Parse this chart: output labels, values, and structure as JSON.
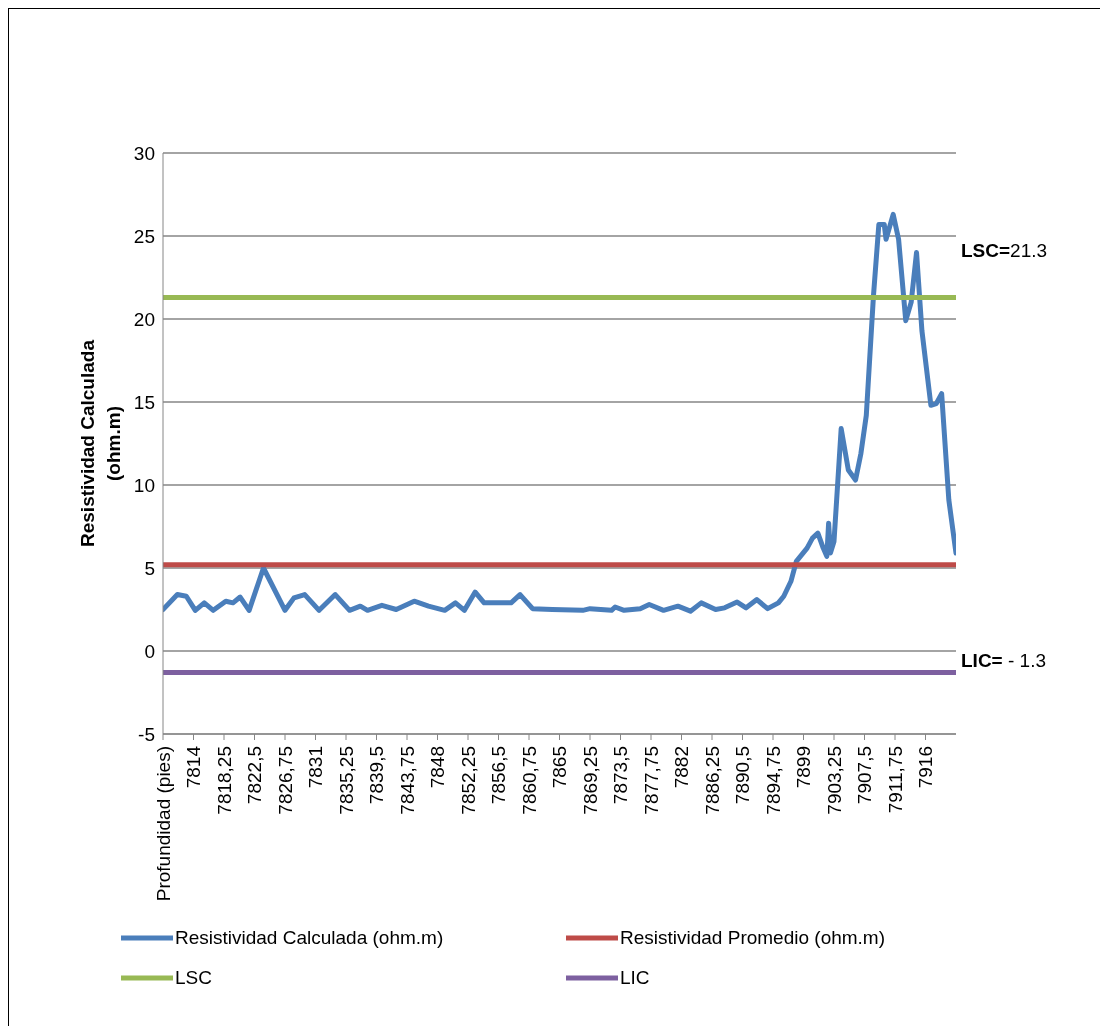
{
  "chart_data": {
    "type": "line",
    "ylabel": "Resistividad Calculada (ohm.m)",
    "xlim": [
      7809.75,
      7920.25
    ],
    "ylim": [
      -5,
      30
    ],
    "yticks": [
      -5,
      0,
      5,
      10,
      15,
      20,
      25,
      30
    ],
    "xticks": [
      {
        "value": 7809.75,
        "label": "Profundidad (pies)"
      },
      {
        "value": 7814,
        "label": "7814"
      },
      {
        "value": 7818.25,
        "label": "7818,25"
      },
      {
        "value": 7822.5,
        "label": "7822,5"
      },
      {
        "value": 7826.75,
        "label": "7826,75"
      },
      {
        "value": 7831,
        "label": "7831"
      },
      {
        "value": 7835.25,
        "label": "7835,25"
      },
      {
        "value": 7839.5,
        "label": "7839,5"
      },
      {
        "value": 7843.75,
        "label": "7843,75"
      },
      {
        "value": 7848,
        "label": "7848"
      },
      {
        "value": 7852.25,
        "label": "7852,25"
      },
      {
        "value": 7856.5,
        "label": "7856,5"
      },
      {
        "value": 7860.75,
        "label": "7860,75"
      },
      {
        "value": 7865,
        "label": "7865"
      },
      {
        "value": 7869.25,
        "label": "7869,25"
      },
      {
        "value": 7873.5,
        "label": "7873,5"
      },
      {
        "value": 7877.75,
        "label": "7877,75"
      },
      {
        "value": 7882,
        "label": "7882"
      },
      {
        "value": 7886.25,
        "label": "7886,25"
      },
      {
        "value": 7890.5,
        "label": "7890,5"
      },
      {
        "value": 7894.75,
        "label": "7894,75"
      },
      {
        "value": 7899,
        "label": "7899"
      },
      {
        "value": 7903.25,
        "label": "7903,25"
      },
      {
        "value": 7907.5,
        "label": "7907,5"
      },
      {
        "value": 7911.75,
        "label": "7911,75"
      },
      {
        "value": 7916,
        "label": "7916"
      }
    ],
    "grid": "y",
    "legend": "bottom",
    "marker": "none",
    "line_style": "solid",
    "series": [
      {
        "name": "Resistividad Calculada (ohm.m)",
        "color": "#4a7ebb",
        "x": [
          7809.75,
          7811.75,
          7813,
          7814.25,
          7815.5,
          7816.75,
          7818.5,
          7819.5,
          7820.5,
          7821.75,
          7823.75,
          7826.75,
          7828,
          7829.5,
          7831.5,
          7833.75,
          7835.75,
          7837.25,
          7838.25,
          7840.25,
          7842.25,
          7844.75,
          7846.75,
          7849,
          7850.5,
          7851.75,
          7853.25,
          7854.5,
          7856,
          7858.25,
          7859.5,
          7861.25,
          7864,
          7868.25,
          7869.25,
          7872.25,
          7872.75,
          7874,
          7876.25,
          7877.5,
          7879.5,
          7881.5,
          7883.25,
          7884.75,
          7886.75,
          7888,
          7889.75,
          7891,
          7892.5,
          7894,
          7895.5,
          7896.25,
          7897.25,
          7898,
          7899.5,
          7900.25,
          7901,
          7901.75,
          7902.25,
          7902.5,
          7902.75,
          7903.25,
          7904.25,
          7905.25,
          7906.25,
          7907,
          7907.75,
          7908.75,
          7909.5,
          7910.25,
          7910.5,
          7911.5,
          7912.25,
          7913.25,
          7914,
          7914.75,
          7915.5,
          7916.75,
          7917.5,
          7918.25,
          7919.25,
          7920.25
        ],
        "values": [
          2.5,
          3.4,
          3.3,
          2.45,
          2.9,
          2.45,
          3.0,
          2.9,
          3.25,
          2.45,
          5.0,
          2.45,
          3.2,
          3.4,
          2.45,
          3.4,
          2.45,
          2.7,
          2.45,
          2.75,
          2.5,
          3.0,
          2.7,
          2.45,
          2.9,
          2.45,
          3.55,
          2.9,
          2.9,
          2.9,
          3.4,
          2.55,
          2.5,
          2.45,
          2.55,
          2.45,
          2.65,
          2.45,
          2.55,
          2.8,
          2.45,
          2.7,
          2.4,
          2.9,
          2.5,
          2.6,
          2.95,
          2.6,
          3.1,
          2.55,
          2.9,
          3.3,
          4.2,
          5.4,
          6.2,
          6.8,
          7.1,
          6.2,
          5.7,
          7.7,
          5.9,
          6.6,
          13.4,
          10.9,
          10.3,
          11.9,
          14.2,
          21.4,
          25.7,
          25.7,
          24.8,
          26.3,
          24.8,
          19.9,
          21.0,
          24.0,
          19.3,
          14.8,
          14.9,
          15.5,
          9.1,
          5.9
        ]
      },
      {
        "name": "Resistividad Promedio (ohm.m)",
        "color": "#be4b48",
        "x": [
          7809.75,
          7920.25
        ],
        "values": [
          5.2,
          5.2
        ]
      },
      {
        "name": "LSC",
        "color": "#98b954",
        "x": [
          7809.75,
          7920.25
        ],
        "values": [
          21.3,
          21.3
        ]
      },
      {
        "name": "LIC",
        "color": "#7d60a0",
        "x": [
          7809.75,
          7920.25
        ],
        "values": [
          -1.3,
          -1.3
        ]
      }
    ],
    "annotations": [
      {
        "text": "LSC=21.3",
        "x": 7920.25,
        "y": 21.3
      },
      {
        "text": "LIC= - 1.3",
        "x": 7920.25,
        "y": -1.3
      }
    ]
  }
}
